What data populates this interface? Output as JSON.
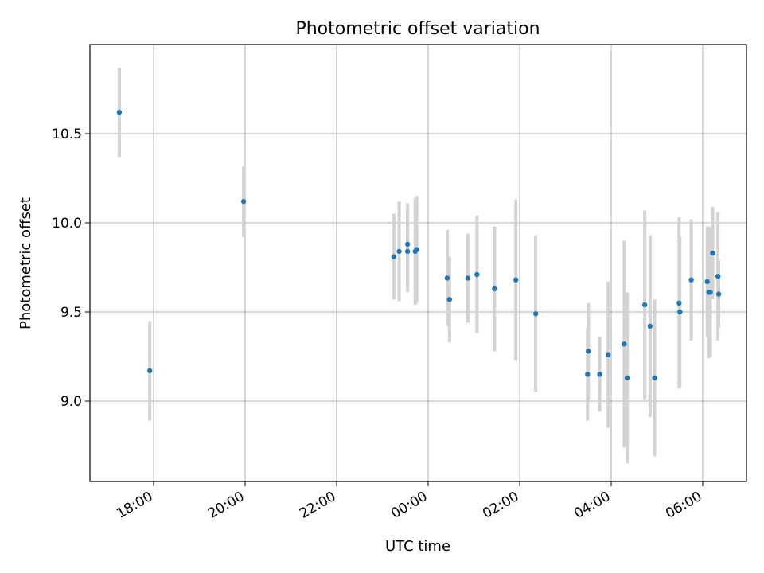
{
  "chart_data": {
    "type": "scatter",
    "title": "Photometric offset variation",
    "xlabel": "UTC time",
    "ylabel": "Photometric offset",
    "x_ticks": [
      "18:00",
      "20:00",
      "22:00",
      "00:00",
      "02:00",
      "04:00",
      "06:00"
    ],
    "y_ticks": [
      "9.0",
      "9.5",
      "10.0",
      "10.5"
    ],
    "y_tick_values": [
      9.0,
      9.5,
      10.0,
      10.5
    ],
    "grid": true,
    "marker_color": "#1f77b4",
    "errorbar_color": "#d3d3d3",
    "points": [
      {
        "time": "17:15",
        "y": 10.62,
        "err": 0.25
      },
      {
        "time": "17:55",
        "y": 9.17,
        "err": 0.28
      },
      {
        "time": "19:58",
        "y": 10.12,
        "err": 0.2
      },
      {
        "time": "23:15",
        "y": 9.81,
        "err": 0.24
      },
      {
        "time": "23:22",
        "y": 9.84,
        "err": 0.28
      },
      {
        "time": "23:33",
        "y": 9.88,
        "err": 0.23
      },
      {
        "time": "23:33",
        "y": 9.84,
        "err": 0.23
      },
      {
        "time": "23:43",
        "y": 9.84,
        "err": 0.3
      },
      {
        "time": "23:45",
        "y": 9.85,
        "err": 0.3
      },
      {
        "time": "00:25",
        "y": 9.69,
        "err": 0.27
      },
      {
        "time": "00:28",
        "y": 9.57,
        "err": 0.24
      },
      {
        "time": "00:52",
        "y": 9.69,
        "err": 0.25
      },
      {
        "time": "01:04",
        "y": 9.71,
        "err": 0.33
      },
      {
        "time": "01:27",
        "y": 9.63,
        "err": 0.35
      },
      {
        "time": "01:55",
        "y": 9.68,
        "err": 0.45
      },
      {
        "time": "02:21",
        "y": 9.49,
        "err": 0.44
      },
      {
        "time": "03:29",
        "y": 9.15,
        "err": 0.26
      },
      {
        "time": "03:30",
        "y": 9.28,
        "err": 0.27
      },
      {
        "time": "03:45",
        "y": 9.15,
        "err": 0.21
      },
      {
        "time": "03:56",
        "y": 9.26,
        "err": 0.41
      },
      {
        "time": "04:17",
        "y": 9.32,
        "err": 0.58
      },
      {
        "time": "04:21",
        "y": 9.13,
        "err": 0.48
      },
      {
        "time": "04:44",
        "y": 9.54,
        "err": 0.53
      },
      {
        "time": "04:51",
        "y": 9.42,
        "err": 0.51
      },
      {
        "time": "04:57",
        "y": 9.13,
        "err": 0.44
      },
      {
        "time": "05:29",
        "y": 9.55,
        "err": 0.48
      },
      {
        "time": "05:30",
        "y": 9.5,
        "err": 0.42
      },
      {
        "time": "05:45",
        "y": 9.68,
        "err": 0.34
      },
      {
        "time": "06:06",
        "y": 9.67,
        "err": 0.31
      },
      {
        "time": "06:08",
        "y": 9.61,
        "err": 0.37
      },
      {
        "time": "06:10",
        "y": 9.61,
        "err": 0.36
      },
      {
        "time": "06:13",
        "y": 9.83,
        "err": 0.26
      },
      {
        "time": "06:20",
        "y": 9.7,
        "err": 0.36
      },
      {
        "time": "06:21",
        "y": 9.6,
        "err": 0.19
      }
    ]
  }
}
